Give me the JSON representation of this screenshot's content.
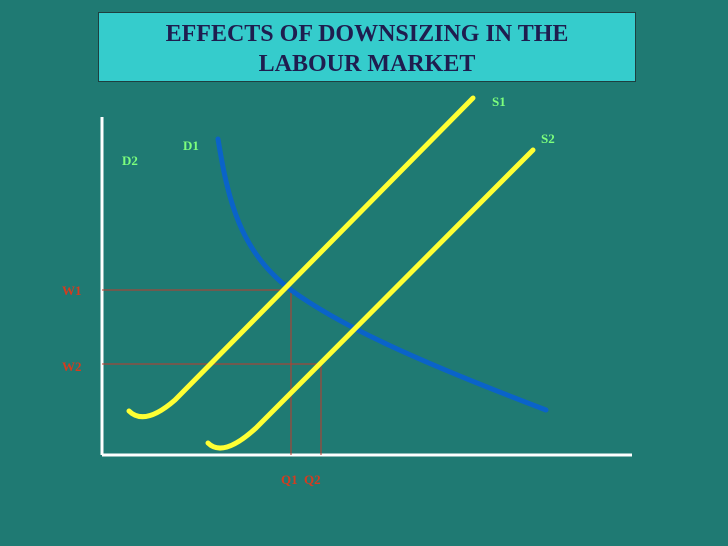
{
  "title": {
    "line1": "EFFECTS OF DOWNSIZING IN THE",
    "line2": "LABOUR MARKET"
  },
  "labels": {
    "s1": "S1",
    "s2": "S2",
    "d1": "D1",
    "d2": "D2",
    "w1": "W1",
    "w2": "W2",
    "q1": "Q1",
    "q2": "Q2"
  },
  "colors": {
    "background": "#1f7a73",
    "title_fill": "#35cccc",
    "title_text": "#1f1d4f",
    "supply_curve": "#ffff33",
    "demand_curve": "#0a63c9",
    "axes": "#ffffff",
    "guide_lines": "#c0392b",
    "curve_labels": "#7dff7d",
    "axis_labels": "#d63b1e"
  }
}
